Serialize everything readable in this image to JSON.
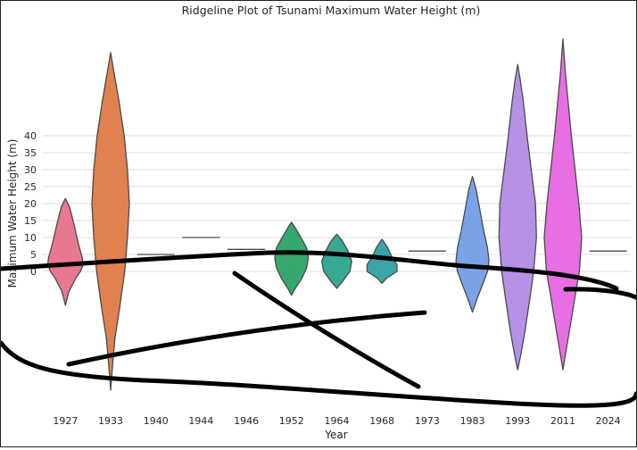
{
  "chart_data": {
    "type": "violin",
    "title": "Ridgeline Plot of Tsunami Maximum Water Height (m)",
    "xlabel": "Year",
    "ylabel": "Maximum Water Height (m)",
    "ylim": [
      -42,
      70
    ],
    "y_ticks": [
      0,
      5,
      10,
      15,
      20,
      25,
      30,
      35,
      40
    ],
    "grid": true,
    "categories": [
      "1927",
      "1933",
      "1940",
      "1944",
      "1946",
      "1952",
      "1964",
      "1968",
      "1973",
      "1983",
      "1993",
      "2011",
      "2024"
    ],
    "series": [
      {
        "category": "1927",
        "color": "#e8788f",
        "profile": [
          [
            -10,
            0
          ],
          [
            -6,
            0.18
          ],
          [
            -2,
            0.55
          ],
          [
            0,
            0.8
          ],
          [
            2,
            0.95
          ],
          [
            4,
            0.9
          ],
          [
            8,
            0.7
          ],
          [
            14,
            0.45
          ],
          [
            19,
            0.22
          ],
          [
            21.5,
            0
          ]
        ]
      },
      {
        "category": "1933",
        "color": "#e0814f",
        "profile": [
          [
            -35,
            0
          ],
          [
            -30,
            0.07
          ],
          [
            -20,
            0.22
          ],
          [
            -10,
            0.5
          ],
          [
            0,
            0.75
          ],
          [
            10,
            0.9
          ],
          [
            20,
            1.0
          ],
          [
            30,
            0.9
          ],
          [
            40,
            0.72
          ],
          [
            50,
            0.45
          ],
          [
            58,
            0.2
          ],
          [
            64.5,
            0
          ]
        ]
      },
      {
        "category": "1940",
        "color": "#bcc26a",
        "value": 5
      },
      {
        "category": "1944",
        "color": "#97bd5a",
        "value": 10
      },
      {
        "category": "1946",
        "color": "#5bbf6a",
        "value": 6.5
      },
      {
        "category": "1952",
        "color": "#35a86e",
        "profile": [
          [
            -7,
            0
          ],
          [
            -5,
            0.2
          ],
          [
            -2,
            0.55
          ],
          [
            1,
            0.8
          ],
          [
            4,
            0.9
          ],
          [
            7,
            0.8
          ],
          [
            10,
            0.5
          ],
          [
            13,
            0.18
          ],
          [
            14.5,
            0
          ]
        ]
      },
      {
        "category": "1964",
        "color": "#36a894",
        "profile": [
          [
            -5,
            0
          ],
          [
            -3,
            0.3
          ],
          [
            0,
            0.7
          ],
          [
            3,
            0.8
          ],
          [
            6,
            0.6
          ],
          [
            9,
            0.3
          ],
          [
            11,
            0
          ]
        ]
      },
      {
        "category": "1968",
        "color": "#3aa5a8",
        "profile": [
          [
            -3.5,
            0
          ],
          [
            -2,
            0.25
          ],
          [
            0,
            0.8
          ],
          [
            2,
            0.8
          ],
          [
            4,
            0.55
          ],
          [
            7,
            0.3
          ],
          [
            9.5,
            0
          ]
        ]
      },
      {
        "category": "1973",
        "color": "#4ea6c4",
        "value": 6
      },
      {
        "category": "1983",
        "color": "#7aa2e6",
        "profile": [
          [
            -12,
            0
          ],
          [
            -8,
            0.25
          ],
          [
            -3,
            0.6
          ],
          [
            0,
            0.8
          ],
          [
            3,
            0.88
          ],
          [
            7,
            0.8
          ],
          [
            12,
            0.6
          ],
          [
            18,
            0.4
          ],
          [
            24,
            0.2
          ],
          [
            28,
            0
          ]
        ]
      },
      {
        "category": "1993",
        "color": "#b592e8",
        "profile": [
          [
            -29,
            0
          ],
          [
            -25,
            0.15
          ],
          [
            -18,
            0.38
          ],
          [
            -8,
            0.65
          ],
          [
            0,
            0.85
          ],
          [
            10,
            1.0
          ],
          [
            20,
            0.95
          ],
          [
            30,
            0.72
          ],
          [
            40,
            0.5
          ],
          [
            50,
            0.3
          ],
          [
            56,
            0.15
          ],
          [
            61,
            0
          ]
        ]
      },
      {
        "category": "2011",
        "color": "#e76fe3",
        "profile": [
          [
            -29,
            0
          ],
          [
            -24,
            0.15
          ],
          [
            -15,
            0.42
          ],
          [
            -5,
            0.72
          ],
          [
            0,
            0.88
          ],
          [
            10,
            1.0
          ],
          [
            20,
            0.85
          ],
          [
            30,
            0.65
          ],
          [
            40,
            0.45
          ],
          [
            50,
            0.28
          ],
          [
            58,
            0.14
          ],
          [
            68.5,
            0
          ]
        ]
      },
      {
        "category": "2024",
        "color": "#e67bb0",
        "value": 6
      }
    ]
  }
}
